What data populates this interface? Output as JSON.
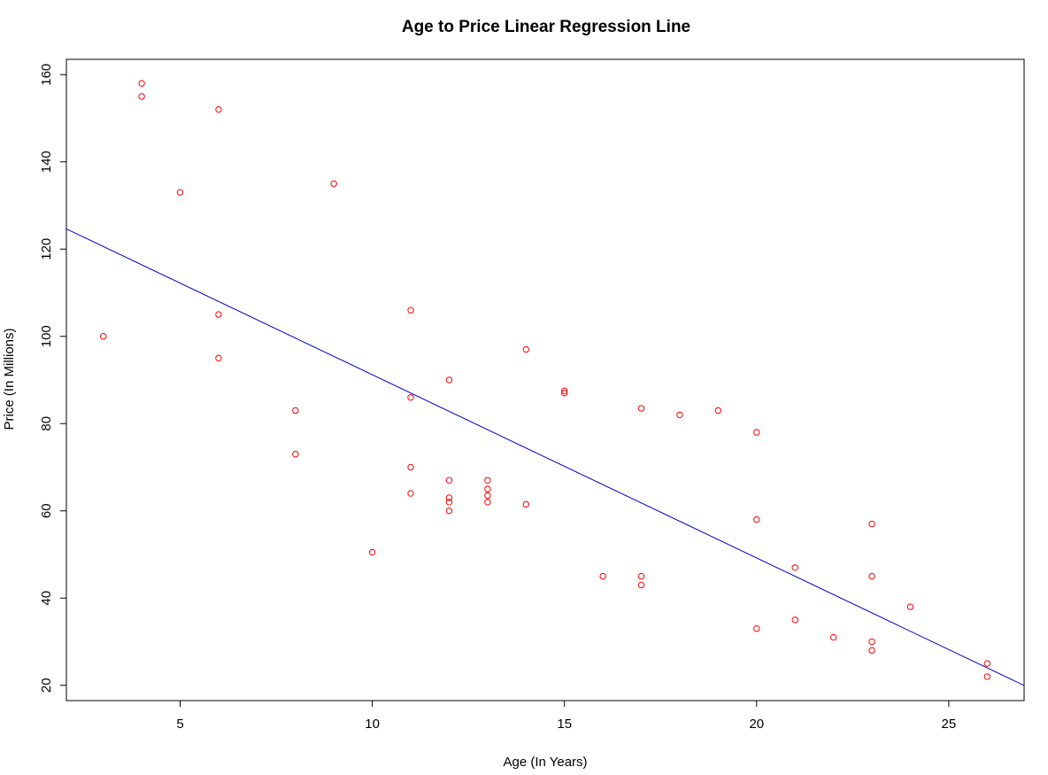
{
  "chart_data": {
    "type": "scatter",
    "title": "Age to Price Linear Regression Line",
    "xlabel": "Age (In Years)",
    "ylabel": "Price (In Millions)",
    "xlim": [
      2.04,
      26.96
    ],
    "ylim": [
      16.5,
      163.5
    ],
    "x_ticks": [
      5,
      10,
      15,
      20,
      25
    ],
    "y_ticks": [
      20,
      40,
      60,
      80,
      100,
      120,
      140,
      160
    ],
    "grid": false,
    "legend": "none",
    "colors": {
      "points": "#ff0000",
      "line": "#0000cc",
      "axes": "#000000"
    },
    "points": [
      {
        "x": 3,
        "y": 100
      },
      {
        "x": 4,
        "y": 158
      },
      {
        "x": 4,
        "y": 155
      },
      {
        "x": 5,
        "y": 133
      },
      {
        "x": 6,
        "y": 152
      },
      {
        "x": 6,
        "y": 105
      },
      {
        "x": 6,
        "y": 95
      },
      {
        "x": 8,
        "y": 83
      },
      {
        "x": 8,
        "y": 73
      },
      {
        "x": 9,
        "y": 135
      },
      {
        "x": 10,
        "y": 50.5
      },
      {
        "x": 11,
        "y": 106
      },
      {
        "x": 11,
        "y": 86
      },
      {
        "x": 11,
        "y": 70
      },
      {
        "x": 11,
        "y": 64
      },
      {
        "x": 12,
        "y": 90
      },
      {
        "x": 12,
        "y": 67
      },
      {
        "x": 12,
        "y": 63
      },
      {
        "x": 12,
        "y": 62
      },
      {
        "x": 12,
        "y": 60
      },
      {
        "x": 13,
        "y": 67
      },
      {
        "x": 13,
        "y": 65
      },
      {
        "x": 13,
        "y": 63.5
      },
      {
        "x": 13,
        "y": 62
      },
      {
        "x": 14,
        "y": 97
      },
      {
        "x": 14,
        "y": 61.5
      },
      {
        "x": 15,
        "y": 87.5
      },
      {
        "x": 15,
        "y": 87
      },
      {
        "x": 16,
        "y": 45
      },
      {
        "x": 17,
        "y": 83.5
      },
      {
        "x": 17,
        "y": 45
      },
      {
        "x": 17,
        "y": 43
      },
      {
        "x": 18,
        "y": 82
      },
      {
        "x": 19,
        "y": 83
      },
      {
        "x": 20,
        "y": 78
      },
      {
        "x": 20,
        "y": 58
      },
      {
        "x": 20,
        "y": 33
      },
      {
        "x": 21,
        "y": 47
      },
      {
        "x": 21,
        "y": 35
      },
      {
        "x": 22,
        "y": 31
      },
      {
        "x": 23,
        "y": 57
      },
      {
        "x": 23,
        "y": 45
      },
      {
        "x": 23,
        "y": 30
      },
      {
        "x": 23,
        "y": 28
      },
      {
        "x": 24,
        "y": 38
      },
      {
        "x": 26,
        "y": 25
      },
      {
        "x": 26,
        "y": 22
      }
    ],
    "regression_line": {
      "intercept": 133.2,
      "slope": -4.2
    }
  }
}
